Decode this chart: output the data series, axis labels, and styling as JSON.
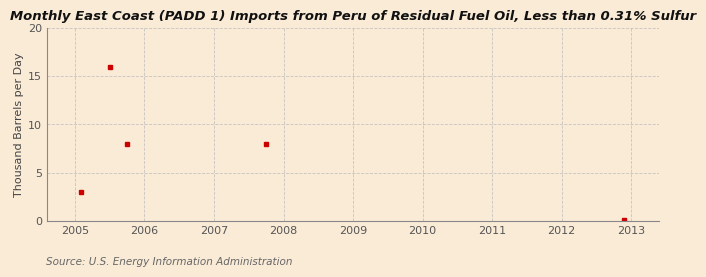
{
  "title": "Monthly East Coast (PADD 1) Imports from Peru of Residual Fuel Oil, Less than 0.31% Sulfur",
  "ylabel": "Thousand Barrels per Day",
  "source": "Source: U.S. Energy Information Administration",
  "background_color": "#faebd7",
  "plot_bg_color": "#faebd7",
  "marker_color": "#cc0000",
  "marker": "s",
  "markersize": 3,
  "data_x": [
    2005.08,
    2005.5,
    2005.75,
    2007.75,
    2012.9
  ],
  "data_y": [
    3.0,
    16.0,
    8.0,
    8.0,
    0.05
  ],
  "xlim": [
    2004.6,
    2013.4
  ],
  "ylim": [
    0,
    20
  ],
  "xticks": [
    2005,
    2006,
    2007,
    2008,
    2009,
    2010,
    2011,
    2012,
    2013
  ],
  "yticks": [
    0,
    5,
    10,
    15,
    20
  ],
  "grid_color": "#bbbbbb",
  "grid_linestyle": "--",
  "title_fontsize": 9.5,
  "label_fontsize": 8,
  "tick_fontsize": 8,
  "source_fontsize": 7.5
}
